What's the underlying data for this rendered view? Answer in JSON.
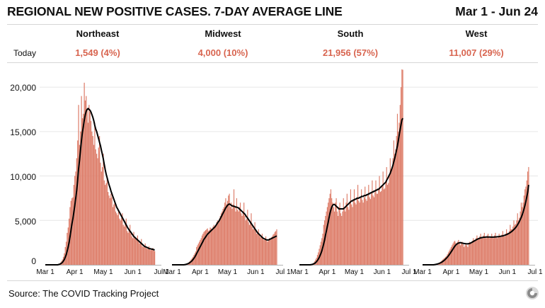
{
  "header": {
    "title": "REGIONAL NEW POSITIVE CASES. 7-DAY AVERAGE LINE",
    "date_range": "Mar 1 - Jun 24"
  },
  "today_label": "Today",
  "source": "Source: The COVID Tracking Project",
  "colors": {
    "bar": "#dd7c68",
    "line": "#000000",
    "today": "#d86550",
    "grid": "#e6e6e6"
  },
  "chart_data": {
    "type": "bar",
    "overlay": "7-day average line",
    "ylim": [
      0,
      22000
    ],
    "yticks": [
      0,
      5000,
      10000,
      15000,
      20000
    ],
    "ytick_labels": [
      "0",
      "5,000",
      "10,000",
      "15,000",
      "20,000"
    ],
    "x_tick_labels": [
      "Mar 1",
      "Apr 1",
      "May 1",
      "Jun 1",
      "Jul 1"
    ],
    "x_range_days": [
      0,
      122
    ],
    "regions": [
      {
        "name": "Northeast",
        "today": "1,549 (4%)",
        "x_day_start": 0,
        "x_day_end": 115,
        "daily": [
          0,
          0,
          0,
          0,
          0,
          0,
          0,
          0,
          0,
          0,
          0,
          0,
          0,
          0,
          100,
          150,
          250,
          400,
          600,
          900,
          1300,
          2000,
          2600,
          3600,
          4200,
          5200,
          6500,
          7200,
          7500,
          7600,
          9000,
          10000,
          10500,
          12000,
          14000,
          18000,
          13500,
          15000,
          19000,
          16500,
          17000,
          20500,
          18500,
          19000,
          17500,
          16000,
          18000,
          17200,
          16200,
          15000,
          14500,
          13500,
          16000,
          13000,
          12500,
          12000,
          13200,
          14500,
          11500,
          10500,
          11000,
          12500,
          9500,
          9000,
          9200,
          9800,
          8200,
          7800,
          7500,
          8000,
          7600,
          6500,
          6800,
          7200,
          6000,
          5800,
          5600,
          6200,
          5200,
          5000,
          5300,
          5800,
          4500,
          4300,
          4600,
          5200,
          3800,
          3600,
          3900,
          4500,
          3500,
          3200,
          3000,
          3700,
          3100,
          2900,
          2800,
          3300,
          2600,
          2400,
          2500,
          2900,
          2100,
          2000,
          2100,
          2400,
          1900,
          1800,
          1800,
          2100,
          1700,
          1650,
          1700,
          1900,
          1600,
          1549
        ],
        "avg": [
          0,
          0,
          0,
          0,
          0,
          0,
          0,
          0,
          0,
          0,
          0,
          0,
          0,
          0,
          30,
          60,
          110,
          180,
          280,
          420,
          600,
          850,
          1150,
          1550,
          2000,
          2500,
          3200,
          3900,
          4600,
          5200,
          5900,
          6700,
          7500,
          8400,
          9500,
          10800,
          11800,
          12900,
          14000,
          14900,
          15600,
          16300,
          16900,
          17300,
          17500,
          17600,
          17500,
          17400,
          17200,
          16900,
          16600,
          16200,
          15700,
          15300,
          15000,
          14600,
          14200,
          13800,
          13400,
          12900,
          12400,
          11900,
          11300,
          10700,
          10200,
          9800,
          9400,
          9000,
          8700,
          8300,
          8000,
          7700,
          7400,
          7100,
          6800,
          6500,
          6300,
          6100,
          5900,
          5700,
          5500,
          5300,
          5100,
          4900,
          4700,
          4500,
          4300,
          4100,
          3950,
          3800,
          3650,
          3500,
          3350,
          3200,
          3100,
          3000,
          2900,
          2800,
          2700,
          2600,
          2500,
          2400,
          2300,
          2200,
          2100,
          2050,
          2000,
          1950,
          1900,
          1850,
          1800,
          1800,
          1750,
          1750,
          1700,
          1700
        ]
      },
      {
        "name": "Midwest",
        "today": "4,000 (10%)",
        "x_day_start": 0,
        "x_day_end": 115,
        "daily": [
          0,
          0,
          0,
          0,
          0,
          0,
          0,
          0,
          0,
          0,
          0,
          0,
          0,
          0,
          50,
          80,
          120,
          180,
          250,
          350,
          450,
          600,
          750,
          900,
          1100,
          1300,
          1500,
          2000,
          2200,
          2400,
          2600,
          2800,
          3000,
          3300,
          3500,
          3700,
          3800,
          3900,
          4000,
          4100,
          3800,
          3900,
          4200,
          4100,
          4000,
          4300,
          4500,
          4200,
          4400,
          4800,
          5000,
          4700,
          5200,
          5500,
          5800,
          6000,
          6300,
          6500,
          7000,
          7500,
          6800,
          7200,
          7800,
          8000,
          6500,
          7000,
          6300,
          6800,
          8500,
          6500,
          6000,
          7500,
          6200,
          6000,
          6500,
          7000,
          5800,
          5500,
          6000,
          7000,
          5500,
          5000,
          5200,
          6200,
          4800,
          4500,
          4800,
          5800,
          4300,
          4000,
          4200,
          4800,
          3800,
          3500,
          3600,
          4000,
          3300,
          3100,
          3200,
          3500,
          3000,
          2800,
          2900,
          3200,
          2700,
          2600,
          2700,
          3000,
          2800,
          3100,
          3200,
          3400,
          3500,
          3700,
          3800,
          4000
        ],
        "avg": [
          0,
          0,
          0,
          0,
          0,
          0,
          0,
          0,
          0,
          0,
          0,
          0,
          0,
          0,
          20,
          40,
          70,
          100,
          150,
          210,
          280,
          360,
          460,
          580,
          720,
          880,
          1050,
          1250,
          1450,
          1650,
          1850,
          2050,
          2250,
          2450,
          2650,
          2850,
          3000,
          3150,
          3300,
          3450,
          3550,
          3650,
          3750,
          3850,
          3950,
          4050,
          4150,
          4250,
          4400,
          4550,
          4700,
          4850,
          5000,
          5200,
          5400,
          5600,
          5800,
          6000,
          6200,
          6400,
          6550,
          6700,
          6800,
          6850,
          6800,
          6700,
          6650,
          6600,
          6600,
          6550,
          6500,
          6500,
          6450,
          6400,
          6300,
          6200,
          6100,
          6000,
          5900,
          5800,
          5700,
          5550,
          5400,
          5250,
          5100,
          4950,
          4800,
          4650,
          4500,
          4350,
          4200,
          4050,
          3900,
          3750,
          3600,
          3500,
          3400,
          3300,
          3200,
          3100,
          3000,
          2950,
          2900,
          2850,
          2800,
          2800,
          2800,
          2850,
          2900,
          2950,
          3000,
          3050,
          3100,
          3150,
          3200,
          3250
        ]
      },
      {
        "name": "South",
        "today": "21,956 (57%)",
        "x_day_start": 0,
        "x_day_end": 115,
        "daily": [
          0,
          0,
          0,
          0,
          0,
          0,
          0,
          0,
          0,
          0,
          0,
          0,
          0,
          50,
          100,
          150,
          250,
          400,
          600,
          800,
          1100,
          1400,
          1800,
          2200,
          2600,
          3000,
          3500,
          4500,
          5000,
          5500,
          6000,
          6500,
          7000,
          7500,
          8000,
          8500,
          7500,
          7000,
          6500,
          6000,
          7000,
          7500,
          6000,
          5500,
          6500,
          7000,
          5800,
          5500,
          6000,
          7500,
          6500,
          6000,
          7000,
          8000,
          6500,
          6200,
          7000,
          8500,
          6800,
          6500,
          7200,
          8500,
          7000,
          6800,
          7500,
          9000,
          7200,
          7000,
          7500,
          8500,
          7300,
          7000,
          7600,
          8800,
          7400,
          7200,
          7800,
          9000,
          7600,
          7400,
          8000,
          9500,
          7800,
          7600,
          8200,
          9500,
          8000,
          8000,
          8500,
          10000,
          8200,
          8300,
          8800,
          10500,
          8500,
          8600,
          9200,
          11000,
          9000,
          9200,
          10000,
          12000,
          10500,
          11000,
          12000,
          14000,
          12500,
          13000,
          14500,
          17000,
          15000,
          16000,
          18000,
          20000,
          22000,
          21956
        ],
        "avg": [
          0,
          0,
          0,
          0,
          0,
          0,
          0,
          0,
          0,
          0,
          0,
          0,
          0,
          20,
          40,
          70,
          110,
          170,
          250,
          350,
          480,
          640,
          830,
          1050,
          1300,
          1600,
          1950,
          2350,
          2800,
          3300,
          3800,
          4300,
          4800,
          5300,
          5800,
          6200,
          6500,
          6700,
          6800,
          6800,
          6700,
          6600,
          6500,
          6400,
          6300,
          6300,
          6300,
          6300,
          6300,
          6300,
          6400,
          6500,
          6600,
          6700,
          6800,
          6900,
          7000,
          7100,
          7200,
          7200,
          7300,
          7300,
          7400,
          7400,
          7500,
          7500,
          7500,
          7600,
          7600,
          7700,
          7700,
          7700,
          7800,
          7800,
          7800,
          7900,
          7900,
          8000,
          8000,
          8100,
          8100,
          8200,
          8200,
          8300,
          8300,
          8400,
          8400,
          8500,
          8500,
          8600,
          8700,
          8800,
          8900,
          9000,
          9100,
          9200,
          9300,
          9500,
          9700,
          9900,
          10100,
          10300,
          10600,
          10900,
          11200,
          11600,
          12000,
          12400,
          12900,
          13400,
          14000,
          14600,
          15200,
          15800,
          16300,
          16500
        ]
      },
      {
        "name": "West",
        "today": "11,007 (29%)",
        "x_day_start": 0,
        "x_day_end": 115,
        "daily": [
          0,
          0,
          0,
          0,
          0,
          0,
          0,
          0,
          0,
          0,
          0,
          0,
          0,
          50,
          80,
          120,
          160,
          200,
          250,
          300,
          400,
          500,
          600,
          700,
          800,
          900,
          1000,
          1200,
          1400,
          1600,
          1800,
          2000,
          2200,
          2400,
          2600,
          2700,
          2500,
          2300,
          2600,
          2800,
          2500,
          2200,
          2400,
          2600,
          2300,
          2000,
          2200,
          2400,
          2200,
          2000,
          2300,
          2600,
          2500,
          2400,
          2700,
          3000,
          2800,
          2700,
          3000,
          3300,
          3000,
          2900,
          3200,
          3500,
          3100,
          3000,
          3300,
          3600,
          3200,
          3000,
          3300,
          3500,
          3100,
          3000,
          3200,
          3500,
          3100,
          3000,
          3300,
          3600,
          3100,
          3000,
          3200,
          3500,
          3200,
          3100,
          3400,
          3800,
          3300,
          3200,
          3500,
          4000,
          3600,
          3500,
          3800,
          4500,
          4000,
          4000,
          4300,
          5000,
          4500,
          4600,
          5000,
          5800,
          5000,
          5300,
          6000,
          7000,
          6500,
          7000,
          7800,
          8500,
          8800,
          9500,
          10500,
          11007
        ],
        "avg": [
          0,
          0,
          0,
          0,
          0,
          0,
          0,
          0,
          0,
          0,
          0,
          0,
          0,
          20,
          40,
          60,
          90,
          120,
          160,
          200,
          250,
          310,
          380,
          460,
          550,
          650,
          760,
          880,
          1010,
          1150,
          1300,
          1460,
          1620,
          1780,
          1940,
          2100,
          2220,
          2320,
          2400,
          2450,
          2480,
          2500,
          2480,
          2450,
          2420,
          2400,
          2380,
          2370,
          2360,
          2360,
          2380,
          2400,
          2450,
          2500,
          2560,
          2620,
          2680,
          2740,
          2800,
          2860,
          2910,
          2960,
          3000,
          3030,
          3060,
          3080,
          3100,
          3110,
          3120,
          3130,
          3130,
          3130,
          3130,
          3130,
          3120,
          3120,
          3120,
          3120,
          3130,
          3140,
          3150,
          3160,
          3170,
          3180,
          3200,
          3220,
          3240,
          3260,
          3290,
          3320,
          3360,
          3400,
          3450,
          3500,
          3560,
          3630,
          3700,
          3780,
          3870,
          3970,
          4080,
          4200,
          4340,
          4500,
          4680,
          4880,
          5100,
          5350,
          5630,
          5950,
          6300,
          6700,
          7150,
          7650,
          8200,
          9000
        ]
      }
    ]
  }
}
